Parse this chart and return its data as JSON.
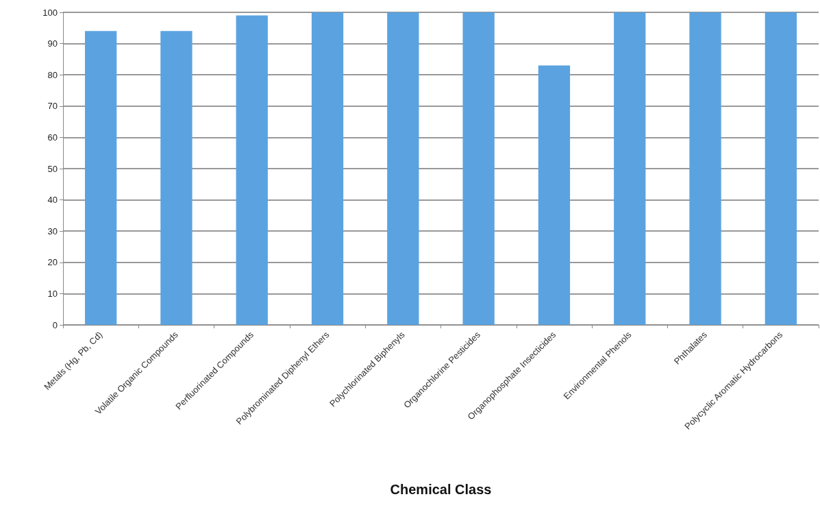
{
  "chart_data": {
    "type": "bar",
    "xlabel": "Chemical Class",
    "categories": [
      "Metals (Hg, Pb, Cd)",
      "Volatile Organic Compounds",
      "Perfluorinated Compounds",
      "Polybrominated Diphenyl Ethers",
      "Polychlorinated Biphenyls",
      "Organochlorine Pesticides",
      "Organophosphate Insecticides",
      "Environmental Phenols",
      "Phthalates",
      "Polycyclic Aromatic Hydrocarbons"
    ],
    "values": [
      94,
      94,
      99,
      100,
      100,
      100,
      83,
      100,
      100,
      100
    ],
    "color": "#5ba3e0",
    "ylim": [
      0,
      100
    ],
    "yticks": [
      0,
      10,
      20,
      30,
      40,
      50,
      60,
      70,
      80,
      90,
      100
    ],
    "grid": "y"
  }
}
